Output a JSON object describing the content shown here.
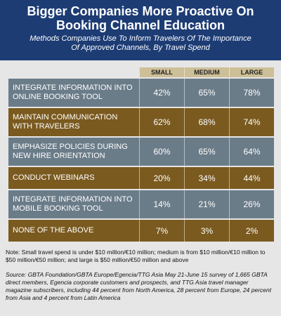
{
  "header": {
    "title": "Bigger Companies More Proactive On Booking Channel Education",
    "subtitle": "Methods Companies Use To Inform Travelers Of The Importance Of Approved Channels, By Travel Spend"
  },
  "table": {
    "columns": [
      "SMALL",
      "MEDIUM",
      "LARGE"
    ],
    "rows": [
      {
        "label": "INTEGRATE INFORMATION INTO ONLINE BOOKING TOOL",
        "values": [
          "42%",
          "65%",
          "78%"
        ]
      },
      {
        "label": "MAINTAIN COMMUNICATION WITH TRAVELERS",
        "values": [
          "62%",
          "68%",
          "74%"
        ]
      },
      {
        "label": "EMPHASIZE POLICIES DURING NEW HIRE ORIENTATION",
        "values": [
          "60%",
          "65%",
          "64%"
        ]
      },
      {
        "label": "CONDUCT WEBINARS",
        "values": [
          "20%",
          "34%",
          "44%"
        ]
      },
      {
        "label": "INTEGRATE INFORMATION INTO MOBILE BOOKING TOOL",
        "values": [
          "14%",
          "21%",
          "26%"
        ]
      },
      {
        "label": "NONE OF THE ABOVE",
        "values": [
          "7%",
          "3%",
          "2%"
        ]
      }
    ]
  },
  "note": "Note: Small travel spend is under $10 million/€10 million; medium is from $10 million/€10 million to $50 million/€50 million; and large is $50 million/€50 million and above",
  "source": "Source: GBTA Foundation/GBTA Europe/Egencia/TTG Asia May 21-June 15 survey of 1,665 GBTA direct members, Egencia corporate customers and prospects, and TTG Asia travel manager magazine subscribers, including 44 percent from North America, 28 percent from Europe, 24 percent from Asia and 4 percent from Latin America"
}
